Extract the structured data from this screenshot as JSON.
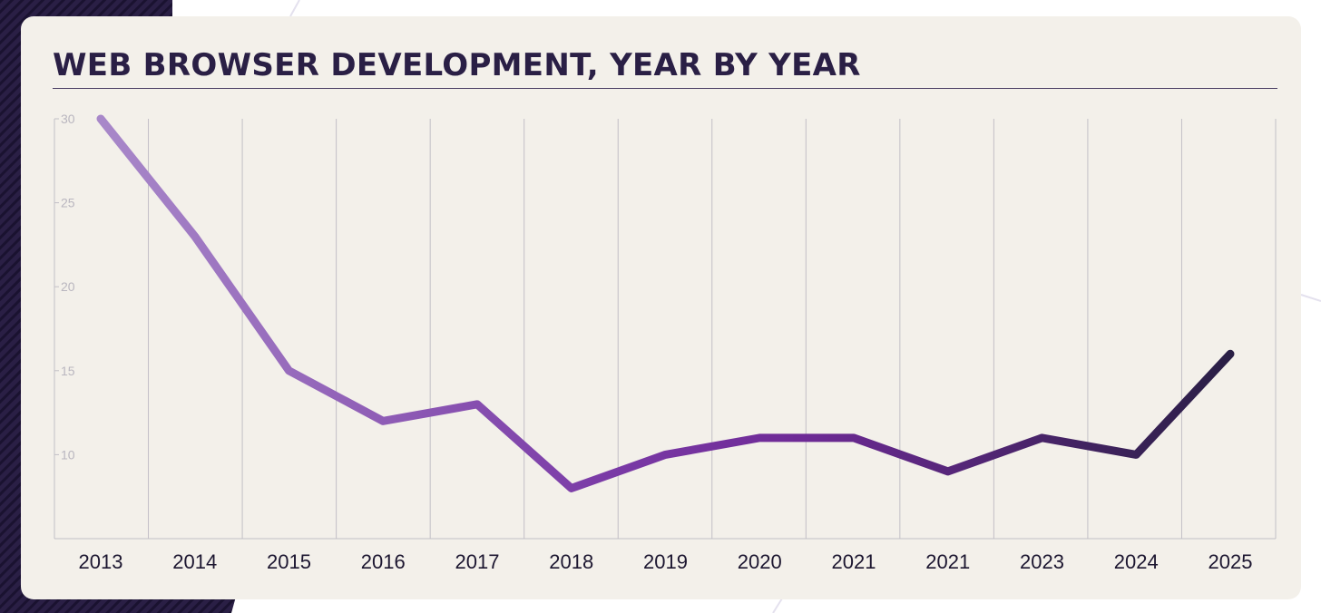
{
  "chart_data": {
    "type": "line",
    "title": "WEB BROWSER DEVELOPMENT, YEAR BY YEAR",
    "xlabel": "",
    "ylabel": "",
    "categories": [
      "2013",
      "2014",
      "2015",
      "2016",
      "2017",
      "2018",
      "2019",
      "2020",
      "2021",
      "2021",
      "2023",
      "2024",
      "2025"
    ],
    "values": [
      30,
      23,
      15,
      12,
      13,
      8,
      10,
      11,
      11,
      9,
      11,
      10,
      16
    ],
    "y_ticks": [
      10,
      15,
      20,
      25,
      30
    ],
    "ylim": [
      5,
      30
    ],
    "grid": "vertical",
    "legend": "none",
    "line_gradient": [
      "#a888c9",
      "#7a3aa6",
      "#6e2a96",
      "#2a1f45"
    ]
  }
}
